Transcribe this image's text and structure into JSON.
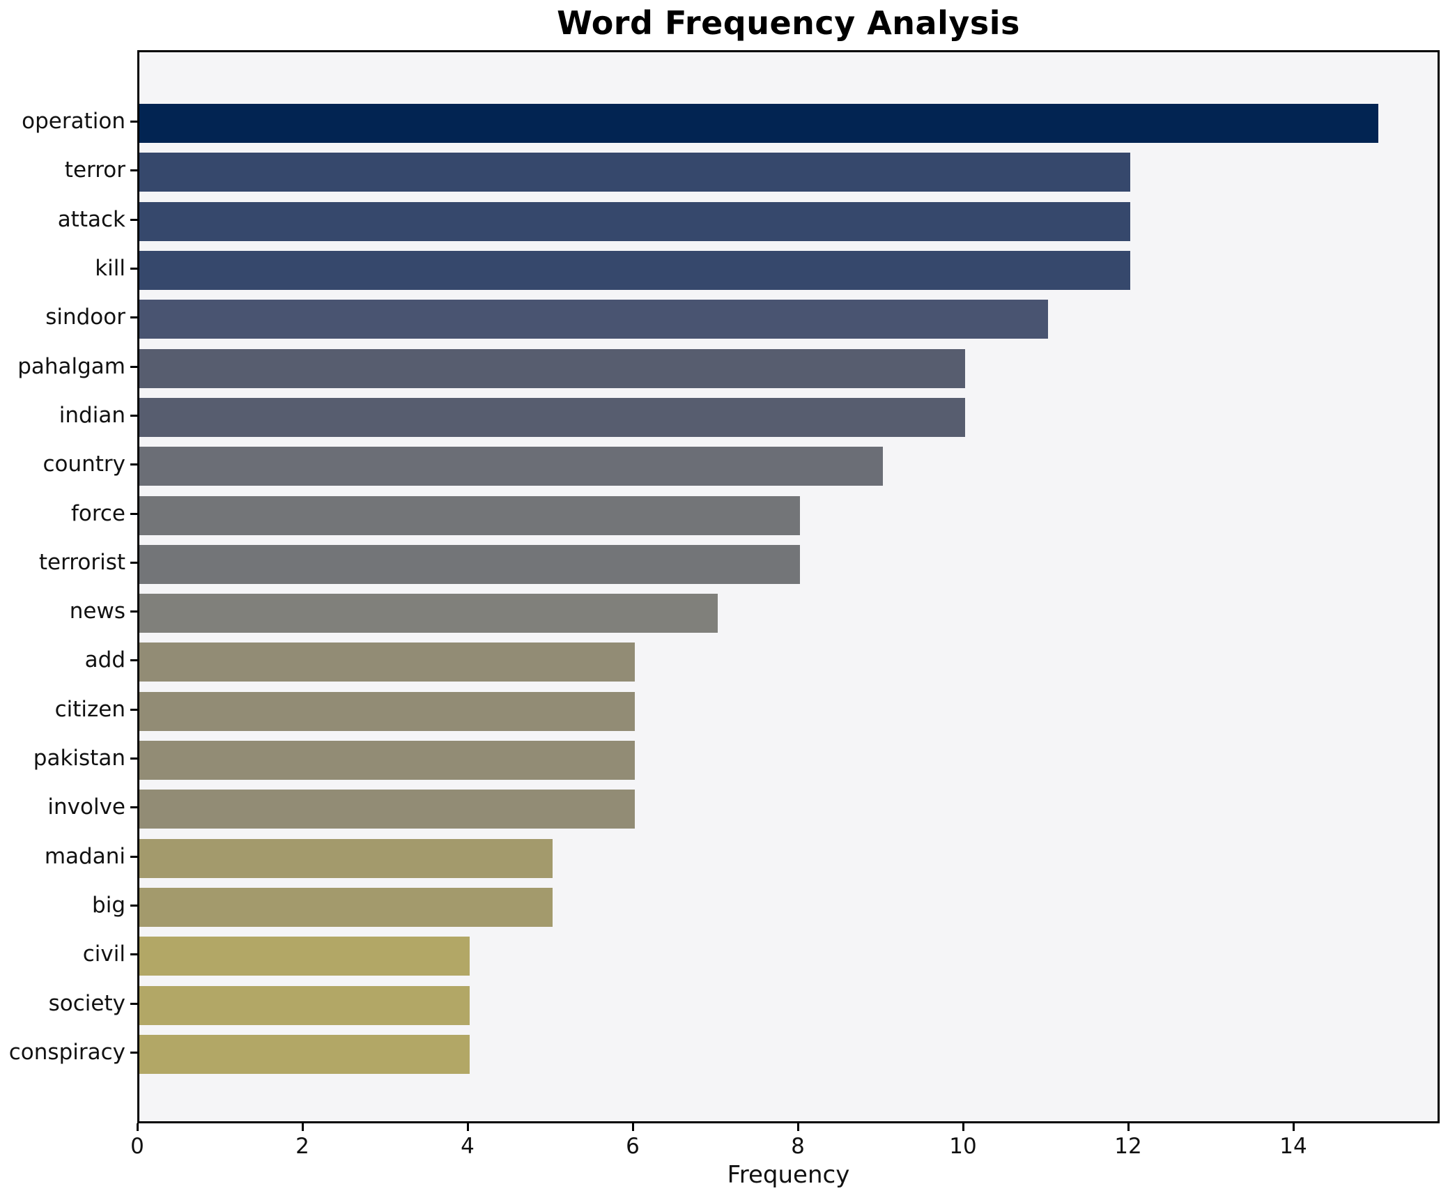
{
  "chart_data": {
    "type": "bar",
    "orientation": "horizontal",
    "title": "Word Frequency Analysis",
    "xlabel": "Frequency",
    "ylabel": "",
    "xlim": [
      0,
      15.77
    ],
    "x_ticks": [
      0,
      2,
      4,
      6,
      8,
      10,
      12,
      14
    ],
    "grid": false,
    "legend": false,
    "figure_bg": "#ffffff",
    "plot_bg": "#f5f5f7",
    "spine_color": "#000000",
    "categories": [
      "operation",
      "terror",
      "attack",
      "kill",
      "sindoor",
      "pahalgam",
      "indian",
      "country",
      "force",
      "terrorist",
      "news",
      "add",
      "citizen",
      "pakistan",
      "involve",
      "madani",
      "big",
      "civil",
      "society",
      "conspiracy"
    ],
    "values": [
      15,
      12,
      12,
      12,
      11,
      10,
      10,
      9,
      8,
      8,
      7,
      6,
      6,
      6,
      6,
      5,
      5,
      4,
      4,
      4
    ],
    "bars": [
      {
        "label": "operation",
        "value": 15,
        "color": "#022452"
      },
      {
        "label": "terror",
        "value": 12,
        "color": "#36486c"
      },
      {
        "label": "attack",
        "value": 12,
        "color": "#36486c"
      },
      {
        "label": "kill",
        "value": 12,
        "color": "#36486c"
      },
      {
        "label": "sindoor",
        "value": 11,
        "color": "#495471"
      },
      {
        "label": "pahalgam",
        "value": 10,
        "color": "#575d6f"
      },
      {
        "label": "indian",
        "value": 10,
        "color": "#575d6f"
      },
      {
        "label": "country",
        "value": 9,
        "color": "#6b6e76"
      },
      {
        "label": "force",
        "value": 8,
        "color": "#737578"
      },
      {
        "label": "terrorist",
        "value": 8,
        "color": "#737578"
      },
      {
        "label": "news",
        "value": 7,
        "color": "#80807b"
      },
      {
        "label": "add",
        "value": 6,
        "color": "#928c75"
      },
      {
        "label": "citizen",
        "value": 6,
        "color": "#928c75"
      },
      {
        "label": "pakistan",
        "value": 6,
        "color": "#928c75"
      },
      {
        "label": "involve",
        "value": 6,
        "color": "#928c75"
      },
      {
        "label": "madani",
        "value": 5,
        "color": "#a39a6c"
      },
      {
        "label": "big",
        "value": 5,
        "color": "#a39a6c"
      },
      {
        "label": "civil",
        "value": 4,
        "color": "#b2a766"
      },
      {
        "label": "society",
        "value": 4,
        "color": "#b2a766"
      },
      {
        "label": "conspiracy",
        "value": 4,
        "color": "#b2a766"
      }
    ]
  }
}
